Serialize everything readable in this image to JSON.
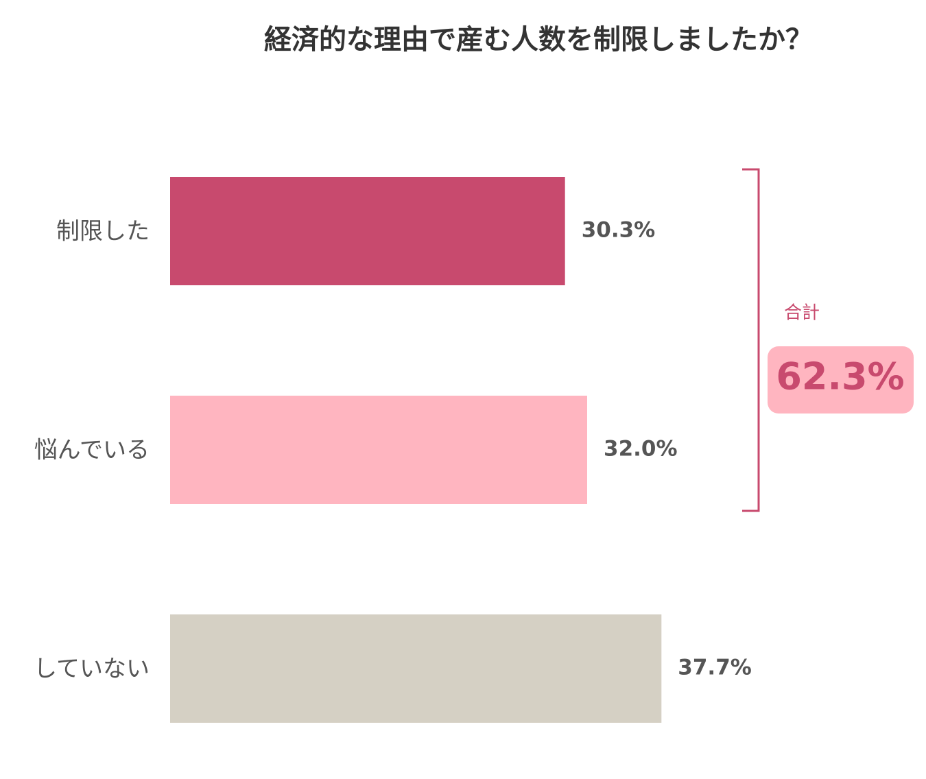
{
  "chart_data": {
    "type": "hbar",
    "title": "経済的な理由で産む人数を制限しましたか？",
    "categories": [
      "制限した",
      "悩んでいる",
      "していない"
    ],
    "values": [
      30.3,
      32.0,
      37.7
    ],
    "value_labels": [
      "30.3%",
      "32.0%",
      "37.7%"
    ],
    "colors": [
      "#c84a6e",
      "#ffb5c0",
      "#d5d0c4"
    ],
    "total": {
      "label": "合計",
      "value": 62.3,
      "value_label": "62.3%"
    }
  }
}
